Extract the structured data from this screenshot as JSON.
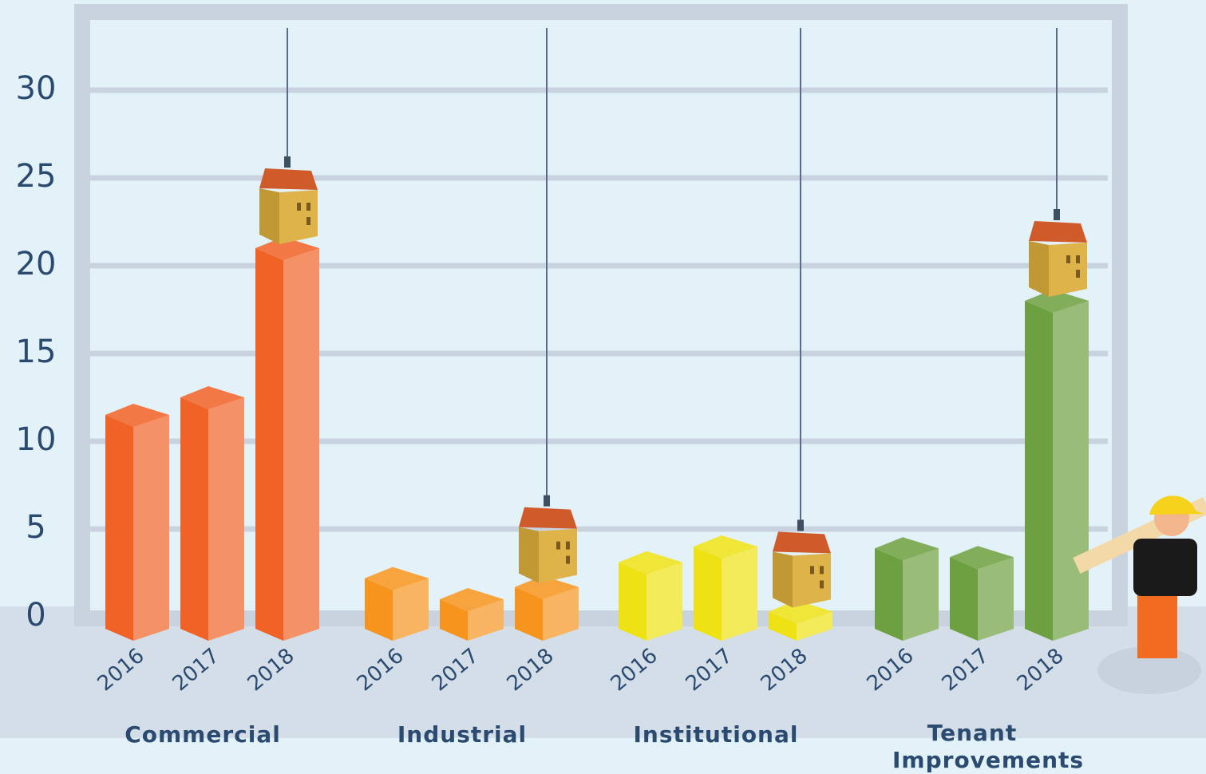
{
  "chart_data": {
    "type": "bar",
    "ylim": [
      0,
      33
    ],
    "yticks": [
      0,
      5,
      10,
      15,
      20,
      25,
      30
    ],
    "grid": true,
    "groups": [
      {
        "name": "Commercial",
        "color": "#f06225",
        "years": [
          "2016",
          "2017",
          "2018"
        ],
        "values": [
          11.5,
          12.5,
          21
        ]
      },
      {
        "name": "Industrial",
        "color": "#f7941d",
        "years": [
          "2016",
          "2017",
          "2018"
        ],
        "values": [
          2.2,
          1,
          1.7
        ]
      },
      {
        "name": "Institutional",
        "color": "#eee214",
        "years": [
          "2016",
          "2017",
          "2018"
        ],
        "values": [
          3.1,
          4,
          0.3
        ]
      },
      {
        "name": "Tenant Improvements",
        "color": "#6da040",
        "years": [
          "2016",
          "2017",
          "2018"
        ],
        "values": [
          3.9,
          3.4,
          18
        ]
      }
    ]
  }
}
